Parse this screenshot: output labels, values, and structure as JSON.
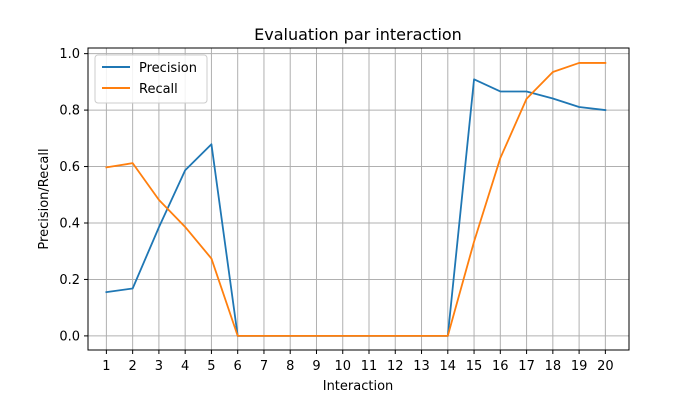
{
  "chart_data": {
    "type": "line",
    "title": "Evaluation par interaction",
    "xlabel": "Interaction",
    "ylabel": "Precision/Recall",
    "x": [
      1,
      2,
      3,
      4,
      5,
      6,
      7,
      8,
      9,
      10,
      11,
      12,
      13,
      14,
      15,
      16,
      17,
      18,
      19,
      20
    ],
    "xlim": [
      0.3,
      20.9
    ],
    "ylim": [
      -0.05,
      1.02
    ],
    "yticks": [
      0.0,
      0.2,
      0.4,
      0.6,
      0.8,
      1.0
    ],
    "ytick_labels": [
      "0.0",
      "0.2",
      "0.4",
      "0.6",
      "0.8",
      "1.0"
    ],
    "grid": true,
    "legend_position": "upper-left",
    "series": [
      {
        "name": "Precision",
        "color": "#1f77b4",
        "values": [
          0.155,
          0.168,
          0.385,
          0.587,
          0.679,
          0.0,
          0.0,
          0.0,
          0.0,
          0.0,
          0.0,
          0.0,
          0.0,
          0.0,
          0.909,
          0.866,
          0.866,
          0.841,
          0.811,
          0.8
        ]
      },
      {
        "name": "Recall",
        "color": "#ff7f0e",
        "values": [
          0.597,
          0.612,
          0.482,
          0.386,
          0.274,
          0.0,
          0.0,
          0.0,
          0.0,
          0.0,
          0.0,
          0.0,
          0.0,
          0.0,
          0.334,
          0.63,
          0.84,
          0.935,
          0.967,
          0.967
        ]
      }
    ]
  }
}
